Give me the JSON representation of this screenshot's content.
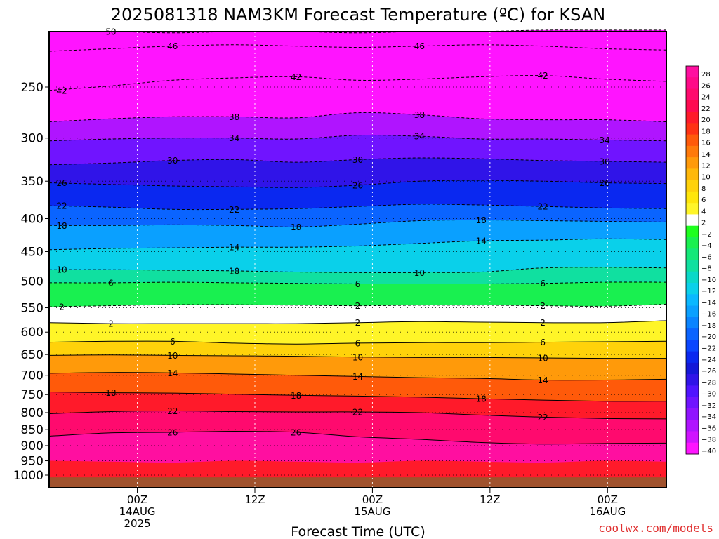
{
  "chart_data": {
    "type": "heatmap",
    "title": "2025081318 NAM3KM Forecast Temperature (ºC) for KSAN",
    "xlabel": "Forecast Time (UTC)",
    "ylabel": "",
    "credit": "coolwx.com/models",
    "y_axis": {
      "scale": "pressure-log-reversed",
      "ylim": [
        1030,
        200
      ],
      "ticks": [
        250,
        300,
        350,
        400,
        450,
        500,
        550,
        600,
        650,
        700,
        750,
        800,
        850,
        900,
        950,
        1000
      ]
    },
    "x_axis": {
      "xlim_hours": [
        -9,
        54
      ],
      "ticks": [
        {
          "hour": 0,
          "lines": [
            "00Z",
            "14AUG",
            "2025"
          ]
        },
        {
          "hour": 12,
          "lines": [
            "12Z"
          ]
        },
        {
          "hour": 24,
          "lines": [
            "00Z",
            "15AUG"
          ]
        },
        {
          "hour": 36,
          "lines": [
            "12Z"
          ]
        },
        {
          "hour": 48,
          "lines": [
            "00Z",
            "16AUG"
          ]
        }
      ]
    },
    "grid": true,
    "colorbar": {
      "placement": "right",
      "levels": [
        28,
        26,
        24,
        22,
        20,
        18,
        16,
        14,
        12,
        10,
        8,
        6,
        4,
        2,
        -2,
        -4,
        -6,
        -8,
        -10,
        -12,
        -14,
        -16,
        -18,
        -20,
        -22,
        -24,
        -26,
        -28,
        -30,
        -32,
        -34,
        -36,
        -38,
        -40
      ],
      "colors": [
        "#ff0fa0",
        "#ff0a88",
        "#ff0a6e",
        "#ff0a50",
        "#ff1a2a",
        "#ff3214",
        "#ff5a0a",
        "#ff7a0a",
        "#ff9a0a",
        "#ffb80a",
        "#ffd20a",
        "#ffe60a",
        "#fff528",
        "#ffffff",
        "#1eff1e",
        "#19f050",
        "#14e878",
        "#10e0a0",
        "#0ad8c8",
        "#0ad0ea",
        "#0ab8ff",
        "#0aa0ff",
        "#0a84ff",
        "#0a64ff",
        "#0a46ff",
        "#0a28f0",
        "#1418d8",
        "#3014e8",
        "#5014ff",
        "#7014ff",
        "#9014ff",
        "#b014ff",
        "#d014ff",
        "#ff14ff"
      ]
    },
    "surface_color": "#a0522d",
    "contours": [
      {
        "value": -50,
        "label": "50",
        "p": [
          205,
          205,
          206,
          205,
          205,
          206,
          205,
          205,
          204,
          204,
          204
        ],
        "labels_at": [
          1
        ]
      },
      {
        "value": -46,
        "label": "46",
        "p": [
          220,
          218,
          216,
          215,
          216,
          217,
          216,
          215,
          216,
          218,
          219
        ],
        "labels_at": [
          2,
          6
        ]
      },
      {
        "value": -42,
        "label": "42",
        "p": [
          253,
          249,
          244,
          242,
          241,
          244,
          243,
          241,
          240,
          243,
          245
        ],
        "labels_at": [
          0,
          4,
          8
        ]
      },
      {
        "value": -38,
        "label": "38",
        "p": [
          283,
          280,
          278,
          278,
          279,
          274,
          276,
          280,
          281,
          281,
          283
        ],
        "labels_at": [
          3,
          6
        ]
      },
      {
        "value": -34,
        "label": "34",
        "p": [
          303,
          301,
          300,
          300,
          301,
          297,
          298,
          301,
          301,
          302,
          303
        ],
        "labels_at": [
          3,
          6,
          9
        ]
      },
      {
        "value": -30,
        "label": "30",
        "p": [
          330,
          328,
          325,
          324,
          327,
          324,
          322,
          323,
          325,
          326,
          327
        ],
        "labels_at": [
          2,
          5,
          9
        ]
      },
      {
        "value": -26,
        "label": "26",
        "p": [
          352,
          354,
          356,
          357,
          358,
          355,
          350,
          349,
          350,
          352,
          353
        ],
        "labels_at": [
          0,
          5,
          9
        ]
      },
      {
        "value": -22,
        "label": "22",
        "p": [
          382,
          384,
          387,
          387,
          386,
          383,
          380,
          381,
          383,
          385,
          386
        ],
        "labels_at": [
          0,
          3,
          8
        ]
      },
      {
        "value": -18,
        "label": "18",
        "p": [
          410,
          410,
          409,
          410,
          412,
          408,
          403,
          402,
          403,
          404,
          405
        ],
        "labels_at": [
          0,
          4,
          7
        ]
      },
      {
        "value": -14,
        "label": "14",
        "p": [
          447,
          445,
          444,
          443,
          443,
          441,
          437,
          433,
          432,
          430,
          431
        ],
        "labels_at": [
          3,
          7
        ]
      },
      {
        "value": -10,
        "label": "10",
        "p": [
          480,
          480,
          481,
          482,
          484,
          485,
          485,
          484,
          477,
          476,
          477
        ],
        "labels_at": [
          0,
          3,
          6
        ]
      },
      {
        "value": -6,
        "label": "6",
        "p": [
          503,
          503,
          502,
          503,
          504,
          505,
          505,
          505,
          504,
          502,
          502
        ],
        "labels_at": [
          1,
          5,
          8
        ]
      },
      {
        "value": -2,
        "label": "2",
        "p": [
          548,
          546,
          544,
          544,
          545,
          546,
          545,
          545,
          546,
          547,
          543
        ],
        "labels_at": [
          0,
          5,
          8
        ]
      },
      {
        "value": 2,
        "label": "2",
        "p": [
          580,
          582,
          582,
          582,
          582,
          580,
          578,
          579,
          580,
          580,
          576
        ],
        "labels_at": [
          1,
          5,
          8
        ]
      },
      {
        "value": 6,
        "label": "6",
        "p": [
          622,
          620,
          620,
          624,
          626,
          624,
          623,
          623,
          622,
          621,
          620
        ],
        "labels_at": [
          2,
          5,
          8
        ]
      },
      {
        "value": 10,
        "label": "10",
        "p": [
          652,
          651,
          652,
          653,
          654,
          656,
          657,
          657,
          658,
          659,
          659
        ],
        "labels_at": [
          2,
          5,
          8
        ]
      },
      {
        "value": 14,
        "label": "14",
        "p": [
          695,
          693,
          694,
          697,
          700,
          703,
          706,
          708,
          712,
          712,
          710
        ],
        "labels_at": [
          2,
          5,
          8
        ]
      },
      {
        "value": 18,
        "label": "18",
        "p": [
          743,
          745,
          746,
          749,
          752,
          754,
          757,
          761,
          765,
          768,
          768
        ],
        "labels_at": [
          1,
          4,
          7
        ]
      },
      {
        "value": 22,
        "label": "22",
        "p": [
          803,
          797,
          795,
          797,
          798,
          798,
          800,
          807,
          813,
          817,
          818
        ],
        "labels_at": [
          2,
          5,
          8
        ]
      },
      {
        "value": 26,
        "label": "26",
        "p": [
          870,
          860,
          858,
          855,
          858,
          872,
          880,
          890,
          895,
          893,
          892
        ],
        "labels_at": [
          2,
          4
        ]
      }
    ]
  }
}
